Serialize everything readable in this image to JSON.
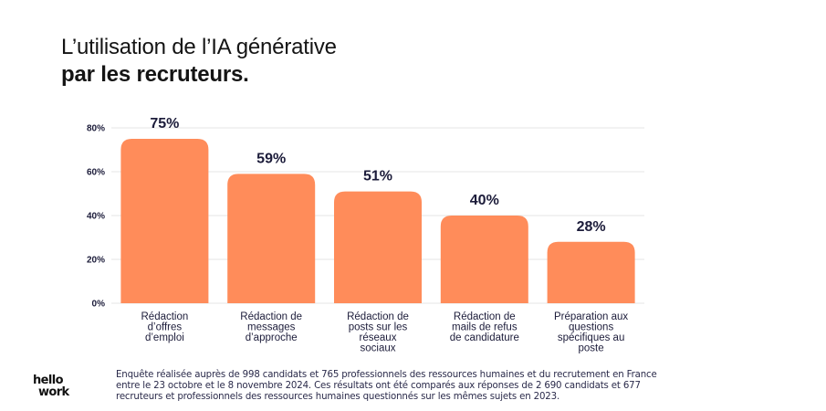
{
  "header": {
    "title_line1": "L’utilisation de l’IA générative",
    "title_line2": "par les recruteurs."
  },
  "chart_data": {
    "type": "bar",
    "categories": [
      [
        "Rédaction",
        "d’offres",
        "d’emploi"
      ],
      [
        "Rédaction de",
        "messages",
        "d’approche"
      ],
      [
        "Rédaction de",
        "posts sur les",
        "réseaux",
        "sociaux"
      ],
      [
        "Rédaction de",
        "mails de refus",
        "de candidature"
      ],
      [
        "Préparation aux",
        "questions",
        "spécifiques au",
        "poste"
      ]
    ],
    "values": [
      75,
      59,
      51,
      40,
      28
    ],
    "value_labels": [
      "75%",
      "59%",
      "51%",
      "40%",
      "28%"
    ],
    "yticks": [
      0,
      20,
      40,
      60,
      80
    ],
    "ytick_labels": [
      "0%",
      "20%",
      "40%",
      "60%",
      "80%"
    ],
    "ylim": [
      0,
      80
    ],
    "grid": true,
    "bar_color": "#FF8C5A",
    "grid_color": "#E6E6E6"
  },
  "footnote": {
    "line1": "Enquête réalisée auprès de 998 candidats et 765 professionnels des ressources humaines et du recrutement en France",
    "line2": "entre le 23 octobre et le 8 novembre 2024. Ces résultats ont été comparés aux réponses de 2 690 candidats et 677",
    "line3": "recruteurs et professionnels des ressources humaines questionnés sur les mêmes sujets en 2023."
  },
  "logo": {
    "line1": "hello",
    "line2": "work"
  }
}
